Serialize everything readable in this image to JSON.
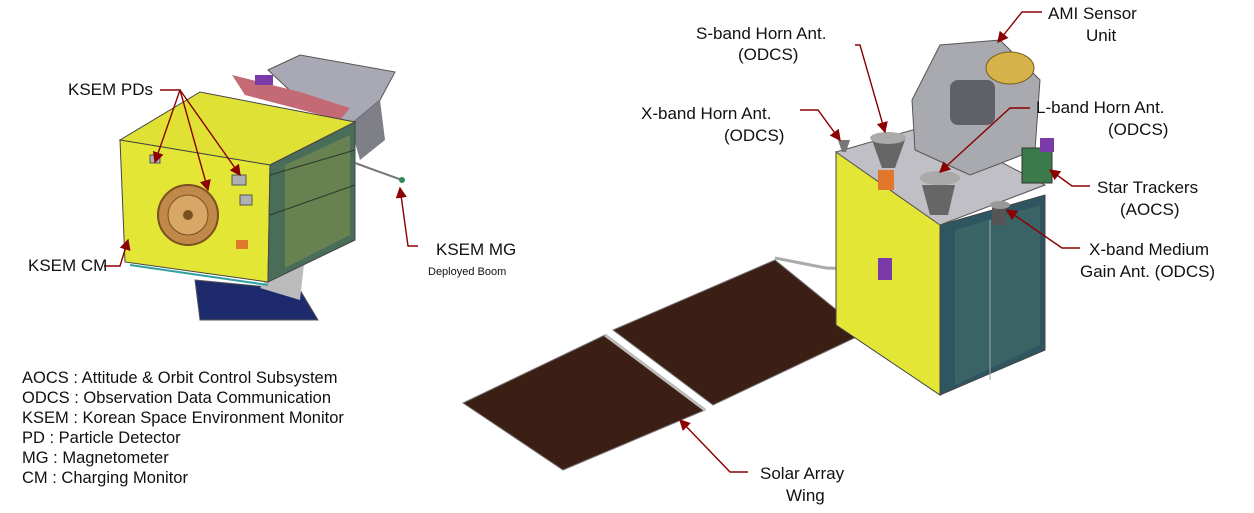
{
  "labels": {
    "ksem_pds": "KSEM PDs",
    "ksem_cm": "KSEM CM",
    "ksem_mg": "KSEM MG",
    "deployed_boom": "Deployed Boom",
    "sband_l1": "S-band Horn Ant.",
    "sband_l2": "(ODCS)",
    "xband_l1": "X-band Horn Ant.",
    "xband_l2": "(ODCS)",
    "ami_l1": "AMI Sensor",
    "ami_l2": "Unit",
    "lband_l1": "L-band Horn Ant.",
    "lband_l2": "(ODCS)",
    "star_l1": "Star Trackers",
    "star_l2": "(AOCS)",
    "xmed_l1": "X-band Medium",
    "xmed_l2": "Gain Ant. (ODCS)",
    "solar_l1": "Solar Array",
    "solar_l2": "Wing"
  },
  "legend": [
    "AOCS : Attitude & Orbit Control Subsystem",
    "ODCS : Observation Data Communication",
    "KSEM : Korean Space Environment Monitor",
    "PD : Particle Detector",
    "MG : Magnetometer",
    "CM : Charging Monitor"
  ],
  "colors": {
    "bus_yellow": "#e3e635",
    "bus_dark": "#2f5560",
    "solar_panel": "#3b1f14",
    "leader_line": "#8b0000",
    "instrument_gray": "#a9a9b0"
  }
}
